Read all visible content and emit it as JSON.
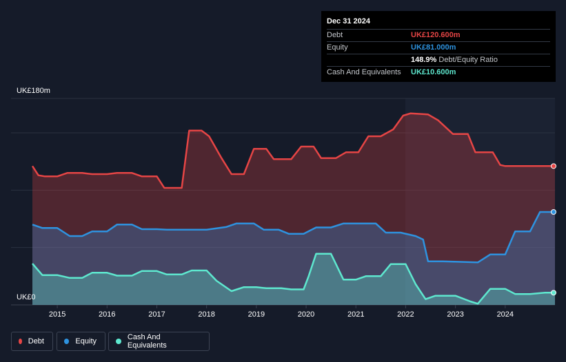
{
  "chart_data": {
    "type": "area",
    "currency_unit": "UK£",
    "y_tick_labels": [
      "UK£0",
      "UK£180m"
    ],
    "ylim": [
      0,
      180
    ],
    "x_tick_labels": [
      "2015",
      "2016",
      "2017",
      "2018",
      "2019",
      "2020",
      "2021",
      "2022",
      "2023",
      "2024"
    ],
    "xlim": [
      2014.5,
      2025.0
    ],
    "grid": true,
    "legend_position": "bottom-left",
    "series": [
      {
        "name": "Debt",
        "color": "#e64545",
        "points": [
          [
            2014.5,
            121
          ],
          [
            2014.62,
            113
          ],
          [
            2014.75,
            112
          ],
          [
            2015.0,
            112
          ],
          [
            2015.2,
            115
          ],
          [
            2015.5,
            115
          ],
          [
            2015.7,
            114
          ],
          [
            2016.0,
            114
          ],
          [
            2016.2,
            115
          ],
          [
            2016.5,
            115
          ],
          [
            2016.7,
            112
          ],
          [
            2017.0,
            112
          ],
          [
            2017.15,
            102
          ],
          [
            2017.5,
            102
          ],
          [
            2017.65,
            152
          ],
          [
            2017.9,
            152
          ],
          [
            2018.05,
            147
          ],
          [
            2018.3,
            128
          ],
          [
            2018.5,
            114
          ],
          [
            2018.75,
            114
          ],
          [
            2018.95,
            136
          ],
          [
            2019.2,
            136
          ],
          [
            2019.35,
            127
          ],
          [
            2019.7,
            127
          ],
          [
            2019.9,
            138
          ],
          [
            2020.15,
            138
          ],
          [
            2020.3,
            128
          ],
          [
            2020.6,
            128
          ],
          [
            2020.8,
            133
          ],
          [
            2021.05,
            133
          ],
          [
            2021.25,
            147
          ],
          [
            2021.5,
            147
          ],
          [
            2021.75,
            153
          ],
          [
            2021.95,
            165
          ],
          [
            2022.1,
            167
          ],
          [
            2022.45,
            166
          ],
          [
            2022.65,
            161
          ],
          [
            2022.8,
            155
          ],
          [
            2022.95,
            149
          ],
          [
            2023.25,
            149
          ],
          [
            2023.4,
            133
          ],
          [
            2023.75,
            133
          ],
          [
            2023.9,
            122
          ],
          [
            2024.0,
            121
          ],
          [
            2024.2,
            121
          ]
        ]
      },
      {
        "name": "Equity",
        "color": "#2e93e0",
        "points": [
          [
            2014.5,
            70
          ],
          [
            2014.7,
            67
          ],
          [
            2015.0,
            67
          ],
          [
            2015.25,
            60
          ],
          [
            2015.5,
            60
          ],
          [
            2015.7,
            64
          ],
          [
            2016.0,
            64
          ],
          [
            2016.2,
            70
          ],
          [
            2016.5,
            70
          ],
          [
            2016.7,
            66
          ],
          [
            2017.0,
            66
          ],
          [
            2017.2,
            65.5
          ],
          [
            2018.0,
            65.5
          ],
          [
            2018.4,
            68
          ],
          [
            2018.6,
            71
          ],
          [
            2018.95,
            71
          ],
          [
            2019.15,
            65.5
          ],
          [
            2019.45,
            65.5
          ],
          [
            2019.65,
            62
          ],
          [
            2019.95,
            62
          ],
          [
            2020.2,
            67.5
          ],
          [
            2020.5,
            67.5
          ],
          [
            2020.75,
            71
          ],
          [
            2021.4,
            71
          ],
          [
            2021.6,
            63
          ],
          [
            2021.9,
            63
          ],
          [
            2022.2,
            60
          ],
          [
            2022.35,
            57
          ],
          [
            2022.45,
            38
          ],
          [
            2022.75,
            38
          ],
          [
            2023.45,
            37
          ],
          [
            2023.7,
            44
          ],
          [
            2024.0,
            44
          ],
          [
            2024.2,
            64
          ],
          [
            2024.5,
            64
          ],
          [
            2024.7,
            81
          ],
          [
            2025.0,
            81
          ]
        ]
      },
      {
        "name": "Cash And Equivalents",
        "color": "#5ee8cf",
        "points": [
          [
            2014.5,
            36
          ],
          [
            2014.7,
            26
          ],
          [
            2015.0,
            26
          ],
          [
            2015.25,
            23.5
          ],
          [
            2015.5,
            23.5
          ],
          [
            2015.7,
            28
          ],
          [
            2016.0,
            28
          ],
          [
            2016.2,
            25.5
          ],
          [
            2016.5,
            25.5
          ],
          [
            2016.7,
            29.5
          ],
          [
            2017.0,
            29.5
          ],
          [
            2017.2,
            26.5
          ],
          [
            2017.5,
            26.5
          ],
          [
            2017.7,
            30
          ],
          [
            2018.0,
            30
          ],
          [
            2018.2,
            21
          ],
          [
            2018.5,
            12
          ],
          [
            2018.75,
            15.5
          ],
          [
            2019.0,
            15.5
          ],
          [
            2019.2,
            14.5
          ],
          [
            2019.5,
            14.5
          ],
          [
            2019.7,
            13.5
          ],
          [
            2019.95,
            13.5
          ],
          [
            2020.05,
            25
          ],
          [
            2020.2,
            44.5
          ],
          [
            2020.5,
            44.5
          ],
          [
            2020.75,
            22
          ],
          [
            2021.0,
            22
          ],
          [
            2021.2,
            25
          ],
          [
            2021.5,
            25
          ],
          [
            2021.7,
            35.5
          ],
          [
            2022.0,
            35.5
          ],
          [
            2022.2,
            18
          ],
          [
            2022.4,
            5
          ],
          [
            2022.6,
            8
          ],
          [
            2023.0,
            8
          ],
          [
            2023.3,
            3
          ],
          [
            2023.45,
            1
          ],
          [
            2023.7,
            14
          ],
          [
            2024.0,
            14
          ],
          [
            2024.2,
            9.5
          ],
          [
            2024.5,
            9.5
          ],
          [
            2024.8,
            10.6
          ],
          [
            2025.0,
            10.6
          ]
        ]
      }
    ]
  },
  "tooltip": {
    "date": "Dec 31 2024",
    "rows": [
      {
        "label": "Debt",
        "value": "UK£120.600m",
        "color": "#e64545"
      },
      {
        "label": "Equity",
        "value": "UK£81.000m",
        "color": "#2e93e0"
      },
      {
        "label": "",
        "value": "148.9%",
        "suffix": "Debt/Equity Ratio",
        "color": "#ffffff"
      },
      {
        "label": "Cash And Equivalents",
        "value": "UK£10.600m",
        "color": "#5ee8cf"
      }
    ]
  },
  "legend": [
    {
      "label": "Debt",
      "color": "#e64545"
    },
    {
      "label": "Equity",
      "color": "#2e93e0"
    },
    {
      "label": "Cash And Equivalents",
      "color": "#5ee8cf"
    }
  ]
}
